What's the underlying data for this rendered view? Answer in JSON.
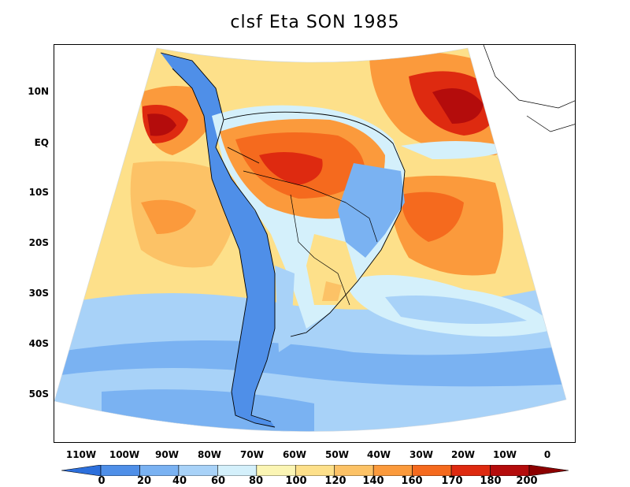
{
  "title": "clsf Eta SON 1985",
  "lat_axis": [
    "10N",
    "EQ",
    "10S",
    "20S",
    "30S",
    "40S",
    "50S"
  ],
  "lon_axis": [
    "110W",
    "100W",
    "90W",
    "80W",
    "70W",
    "60W",
    "50W",
    "40W",
    "30W",
    "20W",
    "10W",
    "0"
  ],
  "colorbar": {
    "labels": [
      "0",
      "20",
      "40",
      "60",
      "80",
      "100",
      "120",
      "140",
      "160",
      "170",
      "180",
      "200"
    ],
    "colors": [
      "#2c6fdc",
      "#4f8fe8",
      "#7ab2f2",
      "#a8d2f8",
      "#d4f0fb",
      "#fbf5b4",
      "#fde08a",
      "#fcc266",
      "#fb9a3c",
      "#f56a1e",
      "#de2a10",
      "#b40c0c",
      "#8c0000"
    ]
  }
}
